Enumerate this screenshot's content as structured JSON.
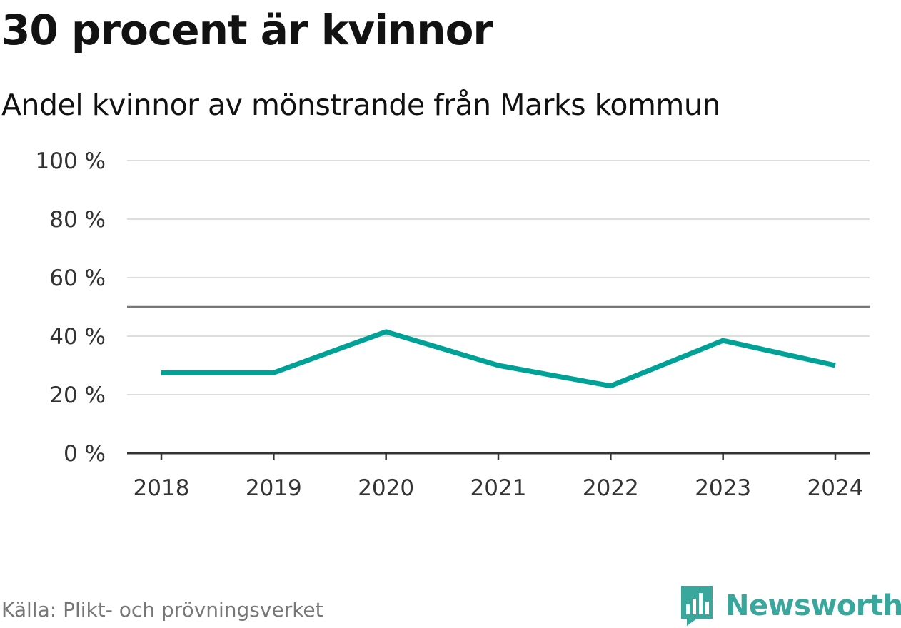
{
  "chart_data": {
    "type": "line",
    "title": "30 procent är kvinnor",
    "subtitle": "Andel kvinnor av mönstrande från Marks kommun",
    "x": [
      "2018",
      "2019",
      "2020",
      "2021",
      "2022",
      "2023",
      "2024"
    ],
    "series": [
      {
        "name": "Andel kvinnor",
        "values": [
          27.5,
          27.5,
          41.5,
          30,
          23,
          38.5,
          30
        ],
        "color": "#00a297"
      }
    ],
    "ylim": [
      0,
      100
    ],
    "yticks": [
      0,
      20,
      40,
      60,
      80,
      100
    ],
    "ytick_labels": [
      "0 %",
      "20 %",
      "40 %",
      "60 %",
      "80 %",
      "100 %"
    ],
    "reference_line": 50,
    "grid": true
  },
  "footer": {
    "source": "Källa: Plikt- och prövningsverket",
    "brand": "Newsworthy",
    "brand_color": "#3aa79d"
  }
}
